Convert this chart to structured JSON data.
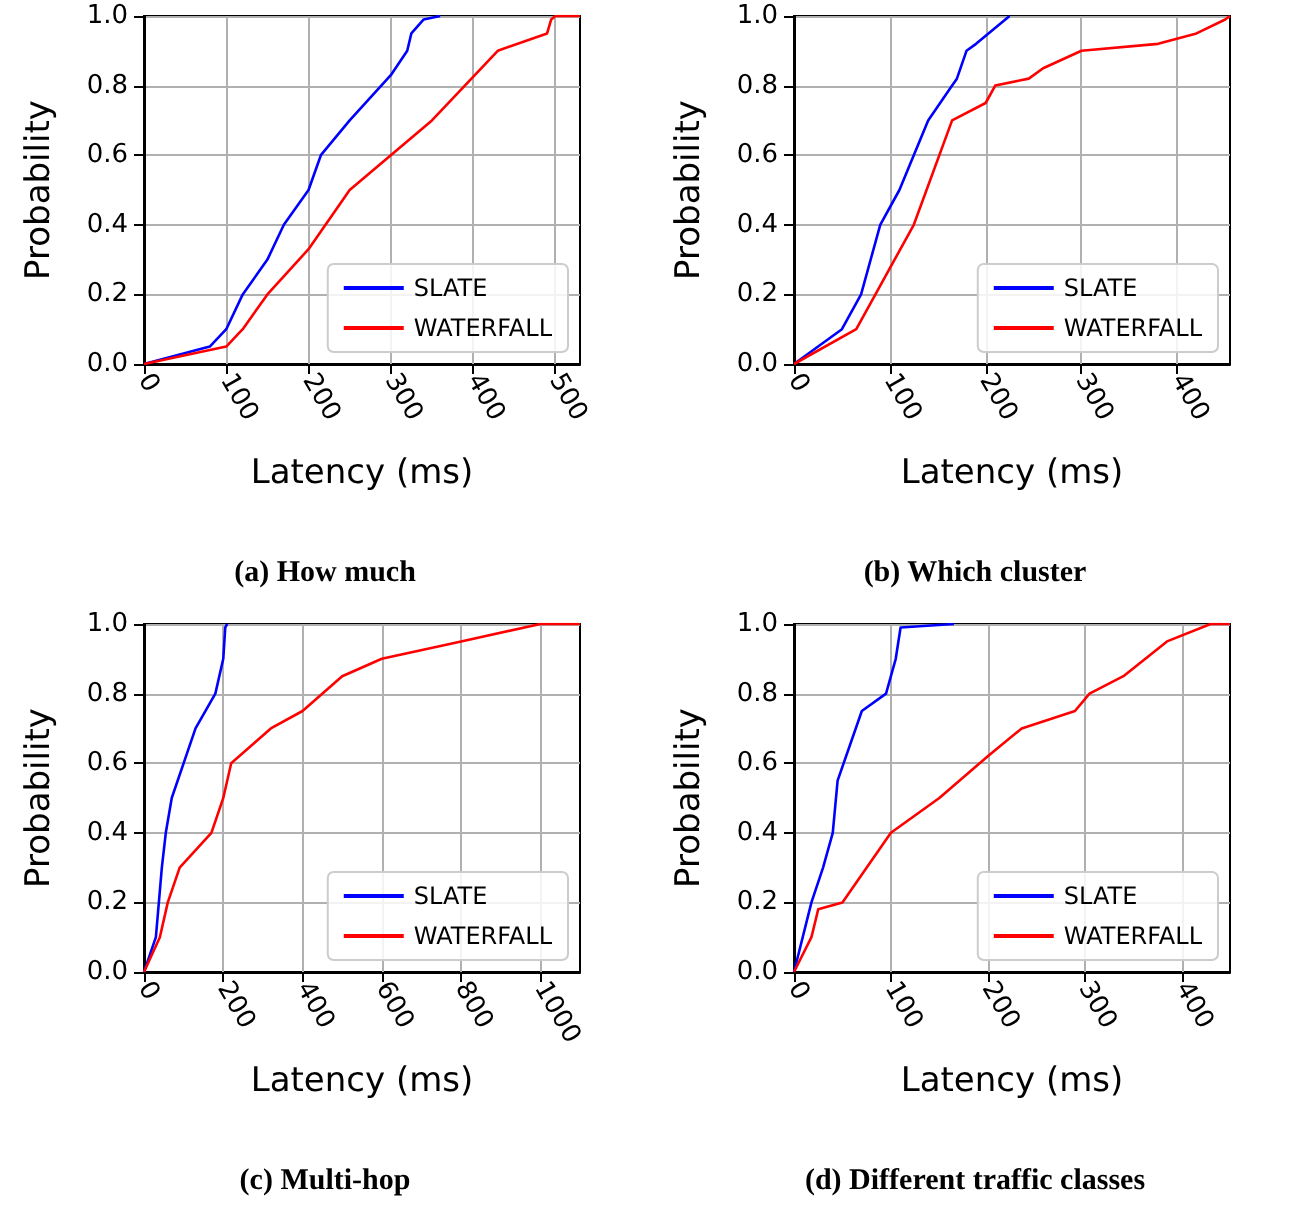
{
  "chart_data": [
    {
      "type": "line",
      "title": "(a) How much",
      "xlabel": "Latency (ms)",
      "ylabel": "Probability",
      "xlim": [
        0,
        530
      ],
      "xticks": [
        0,
        100,
        200,
        300,
        400,
        500
      ],
      "ylim": [
        0,
        1
      ],
      "yticks": [
        {
          "value": 0,
          "label": "0.0"
        },
        {
          "value": 0.2,
          "label": "0.2"
        },
        {
          "value": 0.4,
          "label": "0.4"
        },
        {
          "value": 0.6,
          "label": "0.6"
        },
        {
          "value": 0.8,
          "label": "0.8"
        },
        {
          "value": 1,
          "label": "1.0"
        }
      ],
      "grid": true,
      "legend": "bottom right",
      "series": [
        {
          "name": "SLATE",
          "color": "#0000ff",
          "x": [
            0,
            80,
            100,
            120,
            150,
            170,
            200,
            215,
            250,
            300,
            320,
            325,
            340,
            360
          ],
          "values": [
            0,
            0.05,
            0.1,
            0.2,
            0.3,
            0.4,
            0.5,
            0.6,
            0.7,
            0.83,
            0.9,
            0.95,
            0.99,
            1
          ]
        },
        {
          "name": "WATERFALL",
          "color": "#ff0000",
          "x": [
            0,
            100,
            120,
            150,
            200,
            250,
            300,
            350,
            430,
            490,
            495,
            500,
            530
          ],
          "values": [
            0,
            0.05,
            0.1,
            0.2,
            0.33,
            0.5,
            0.6,
            0.7,
            0.9,
            0.95,
            0.99,
            1,
            1
          ]
        }
      ]
    },
    {
      "type": "line",
      "title": "(b) Which cluster",
      "xlabel": "Latency (ms)",
      "ylabel": "Probability",
      "xlim": [
        0,
        455
      ],
      "xticks": [
        0,
        100,
        200,
        300,
        400
      ],
      "ylim": [
        0,
        1
      ],
      "yticks": [
        {
          "value": 0,
          "label": "0.0"
        },
        {
          "value": 0.2,
          "label": "0.2"
        },
        {
          "value": 0.4,
          "label": "0.4"
        },
        {
          "value": 0.6,
          "label": "0.6"
        },
        {
          "value": 0.8,
          "label": "0.8"
        },
        {
          "value": 1,
          "label": "1.0"
        }
      ],
      "grid": true,
      "legend": "bottom right",
      "series": [
        {
          "name": "SLATE",
          "color": "#0000ff",
          "x": [
            0,
            50,
            70,
            90,
            110,
            140,
            165,
            170,
            180,
            190,
            225
          ],
          "values": [
            0,
            0.1,
            0.2,
            0.4,
            0.5,
            0.7,
            0.8,
            0.82,
            0.9,
            0.92,
            1
          ]
        },
        {
          "name": "WATERFALL",
          "color": "#ff0000",
          "x": [
            0,
            65,
            125,
            165,
            200,
            210,
            245,
            260,
            300,
            380,
            420,
            450,
            455
          ],
          "values": [
            0,
            0.1,
            0.4,
            0.7,
            0.75,
            0.8,
            0.82,
            0.85,
            0.9,
            0.92,
            0.95,
            0.99,
            1
          ]
        }
      ]
    },
    {
      "type": "line",
      "title": "(c) Multi-hop",
      "xlabel": "Latency (ms)",
      "ylabel": "Probability",
      "xlim": [
        0,
        1100
      ],
      "xticks": [
        0,
        200,
        400,
        600,
        800,
        1000
      ],
      "ylim": [
        0,
        1
      ],
      "yticks": [
        {
          "value": 0,
          "label": "0.0"
        },
        {
          "value": 0.2,
          "label": "0.2"
        },
        {
          "value": 0.4,
          "label": "0.4"
        },
        {
          "value": 0.6,
          "label": "0.6"
        },
        {
          "value": 0.8,
          "label": "0.8"
        },
        {
          "value": 1,
          "label": "1.0"
        }
      ],
      "grid": true,
      "legend": "bottom right",
      "series": [
        {
          "name": "SLATE",
          "color": "#0000ff",
          "x": [
            0,
            30,
            45,
            55,
            70,
            130,
            180,
            200,
            205,
            210
          ],
          "values": [
            0,
            0.1,
            0.3,
            0.4,
            0.5,
            0.7,
            0.8,
            0.9,
            0.99,
            1
          ]
        },
        {
          "name": "WATERFALL",
          "color": "#ff0000",
          "x": [
            0,
            40,
            60,
            90,
            170,
            200,
            220,
            320,
            400,
            500,
            600,
            800,
            1000,
            1100
          ],
          "values": [
            0,
            0.1,
            0.2,
            0.3,
            0.4,
            0.5,
            0.6,
            0.7,
            0.75,
            0.85,
            0.9,
            0.95,
            1,
            1
          ]
        }
      ]
    },
    {
      "type": "line",
      "title": "(d) Different traffic classes",
      "xlabel": "Latency (ms)",
      "ylabel": "Probability",
      "xlim": [
        0,
        450
      ],
      "xticks": [
        0,
        100,
        200,
        300,
        400
      ],
      "ylim": [
        0,
        1
      ],
      "yticks": [
        {
          "value": 0,
          "label": "0.0"
        },
        {
          "value": 0.2,
          "label": "0.2"
        },
        {
          "value": 0.4,
          "label": "0.4"
        },
        {
          "value": 0.6,
          "label": "0.6"
        },
        {
          "value": 0.8,
          "label": "0.8"
        },
        {
          "value": 1,
          "label": "1.0"
        }
      ],
      "grid": true,
      "legend": "bottom right",
      "series": [
        {
          "name": "SLATE",
          "color": "#0000ff",
          "x": [
            0,
            18,
            30,
            40,
            45,
            70,
            95,
            105,
            110,
            165
          ],
          "values": [
            0,
            0.2,
            0.3,
            0.4,
            0.55,
            0.75,
            0.8,
            0.9,
            0.99,
            1
          ]
        },
        {
          "name": "WATERFALL",
          "color": "#ff0000",
          "x": [
            0,
            18,
            25,
            50,
            100,
            150,
            200,
            235,
            290,
            305,
            340,
            385,
            430,
            450
          ],
          "values": [
            0,
            0.1,
            0.18,
            0.2,
            0.4,
            0.5,
            0.62,
            0.7,
            0.75,
            0.8,
            0.85,
            0.95,
            1,
            1
          ]
        }
      ]
    }
  ]
}
